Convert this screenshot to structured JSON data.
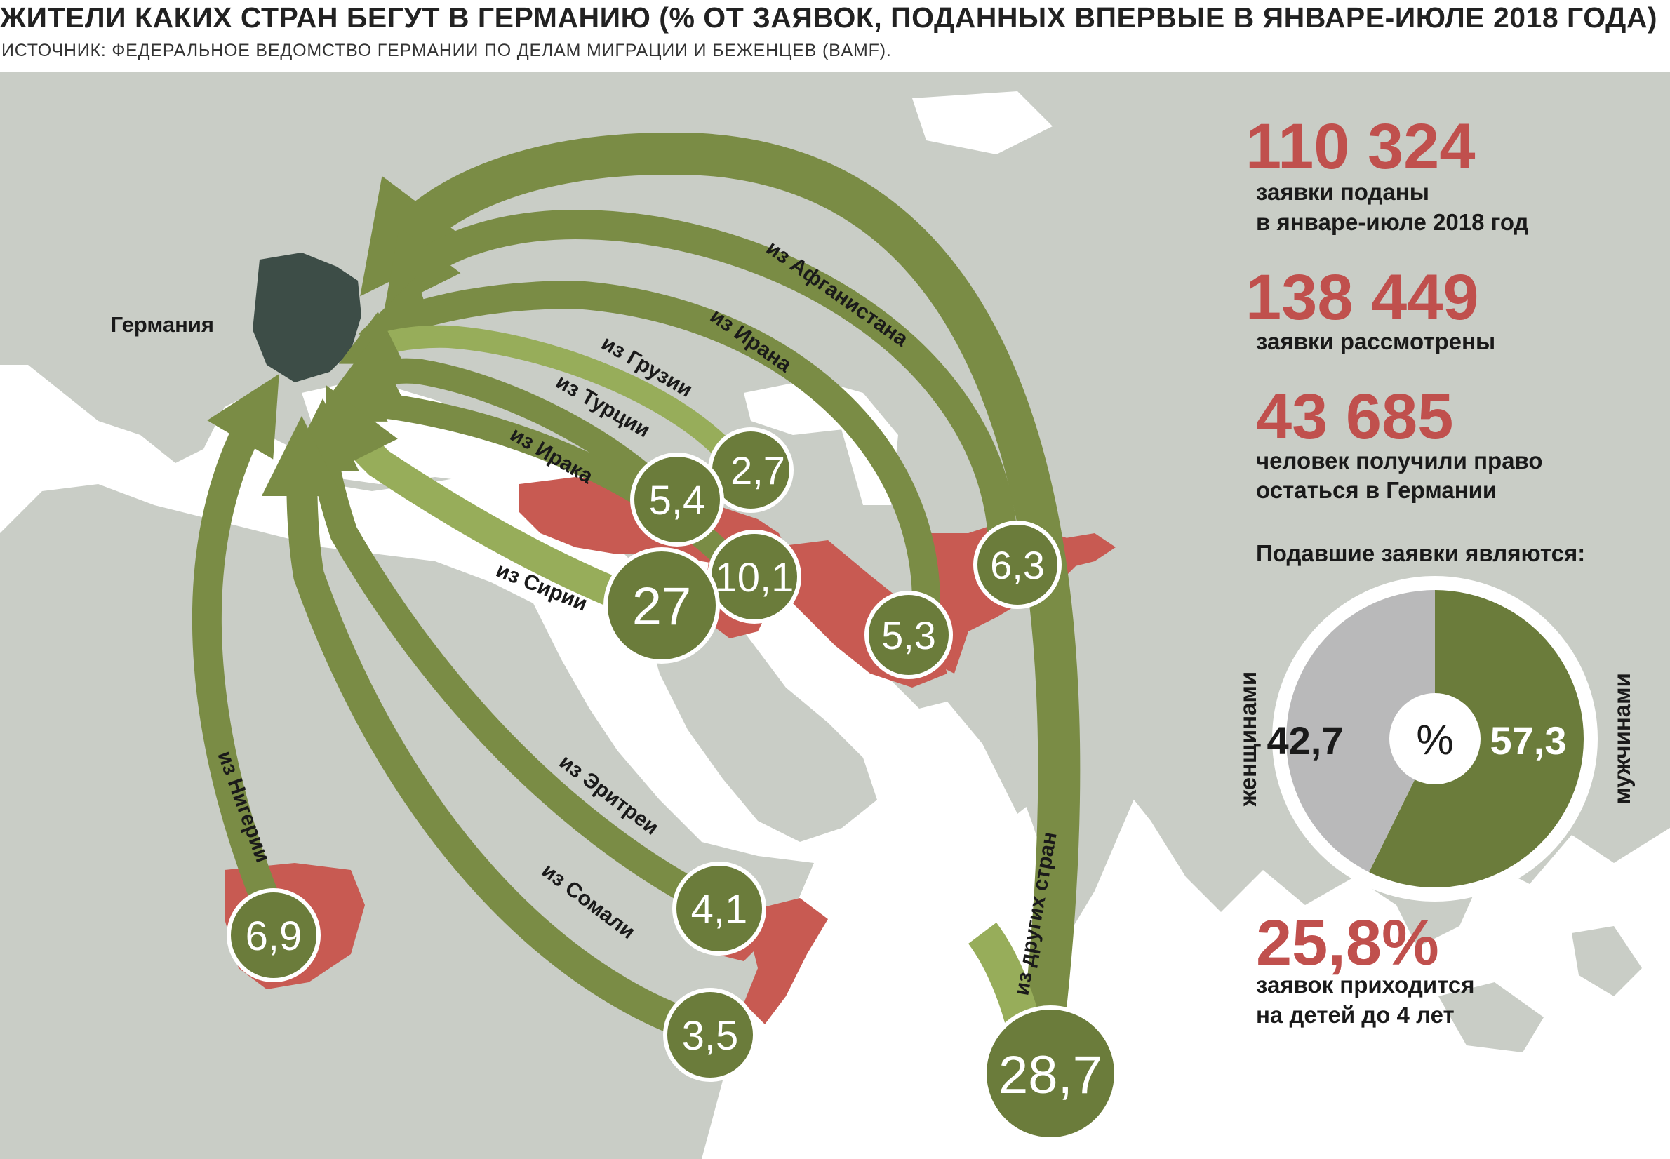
{
  "title": "ЖИТЕЛИ КАКИХ СТРАН БЕГУТ В ГЕРМАНИЮ (% ОТ ЗАЯВОК, ПОДАННЫХ ВПЕРВЫЕ В ЯНВАРЕ-ИЮЛЕ 2018 ГОДА)",
  "source": "ИСТОЧНИК: ФЕДЕРАЛЬНОЕ ВЕДОМСТВО ГЕРМАНИИ ПО ДЕЛАМ МИГРАЦИИ И БЕЖЕНЦЕВ (BAMF).",
  "colors": {
    "arrow": "#6b7c3b",
    "arrow_light": "#97ad5a",
    "country": "#c85a52",
    "germany": "#3d4d47",
    "accent": "#c0504d",
    "land": "#c9cdc6",
    "sea": "#ffffff"
  },
  "germany_label": "Германия",
  "origins": [
    {
      "name": "из Сирии",
      "value": "27"
    },
    {
      "name": "из Ирака",
      "value": "10,1"
    },
    {
      "name": "из Ирана",
      "value": "5,3"
    },
    {
      "name": "из Нигерии",
      "value": "6,9"
    },
    {
      "name": "из Турции",
      "value": "5,4"
    },
    {
      "name": "из Афганистана",
      "value": "6,3"
    },
    {
      "name": "из Эритреи",
      "value": "4,1"
    },
    {
      "name": "из Сомали",
      "value": "3,5"
    },
    {
      "name": "из Грузии",
      "value": "2,7"
    },
    {
      "name": "из других стран",
      "value": "28,7"
    }
  ],
  "stats": [
    {
      "number": "110 324",
      "line1": "заявки поданы",
      "line2": "в январе-июле 2018 год"
    },
    {
      "number": "138 449",
      "line1": "заявки рассмотрены",
      "line2": ""
    },
    {
      "number": "43 685",
      "line1": "человек получили право",
      "line2": "остаться в Германии"
    }
  ],
  "gender": {
    "heading": "Подавшие заявки являются:",
    "women_label": "женщинами",
    "women_value": "42,7",
    "men_label": "мужчинами",
    "men_value": "57,3",
    "center": "%"
  },
  "children": {
    "number": "25,8%",
    "line1": "заявок приходится",
    "line2": "на детей до 4 лет"
  },
  "chart_data": {
    "type": "pie",
    "categories": [
      "женщинами",
      "мужчинами"
    ],
    "values": [
      42.7,
      57.3
    ]
  }
}
